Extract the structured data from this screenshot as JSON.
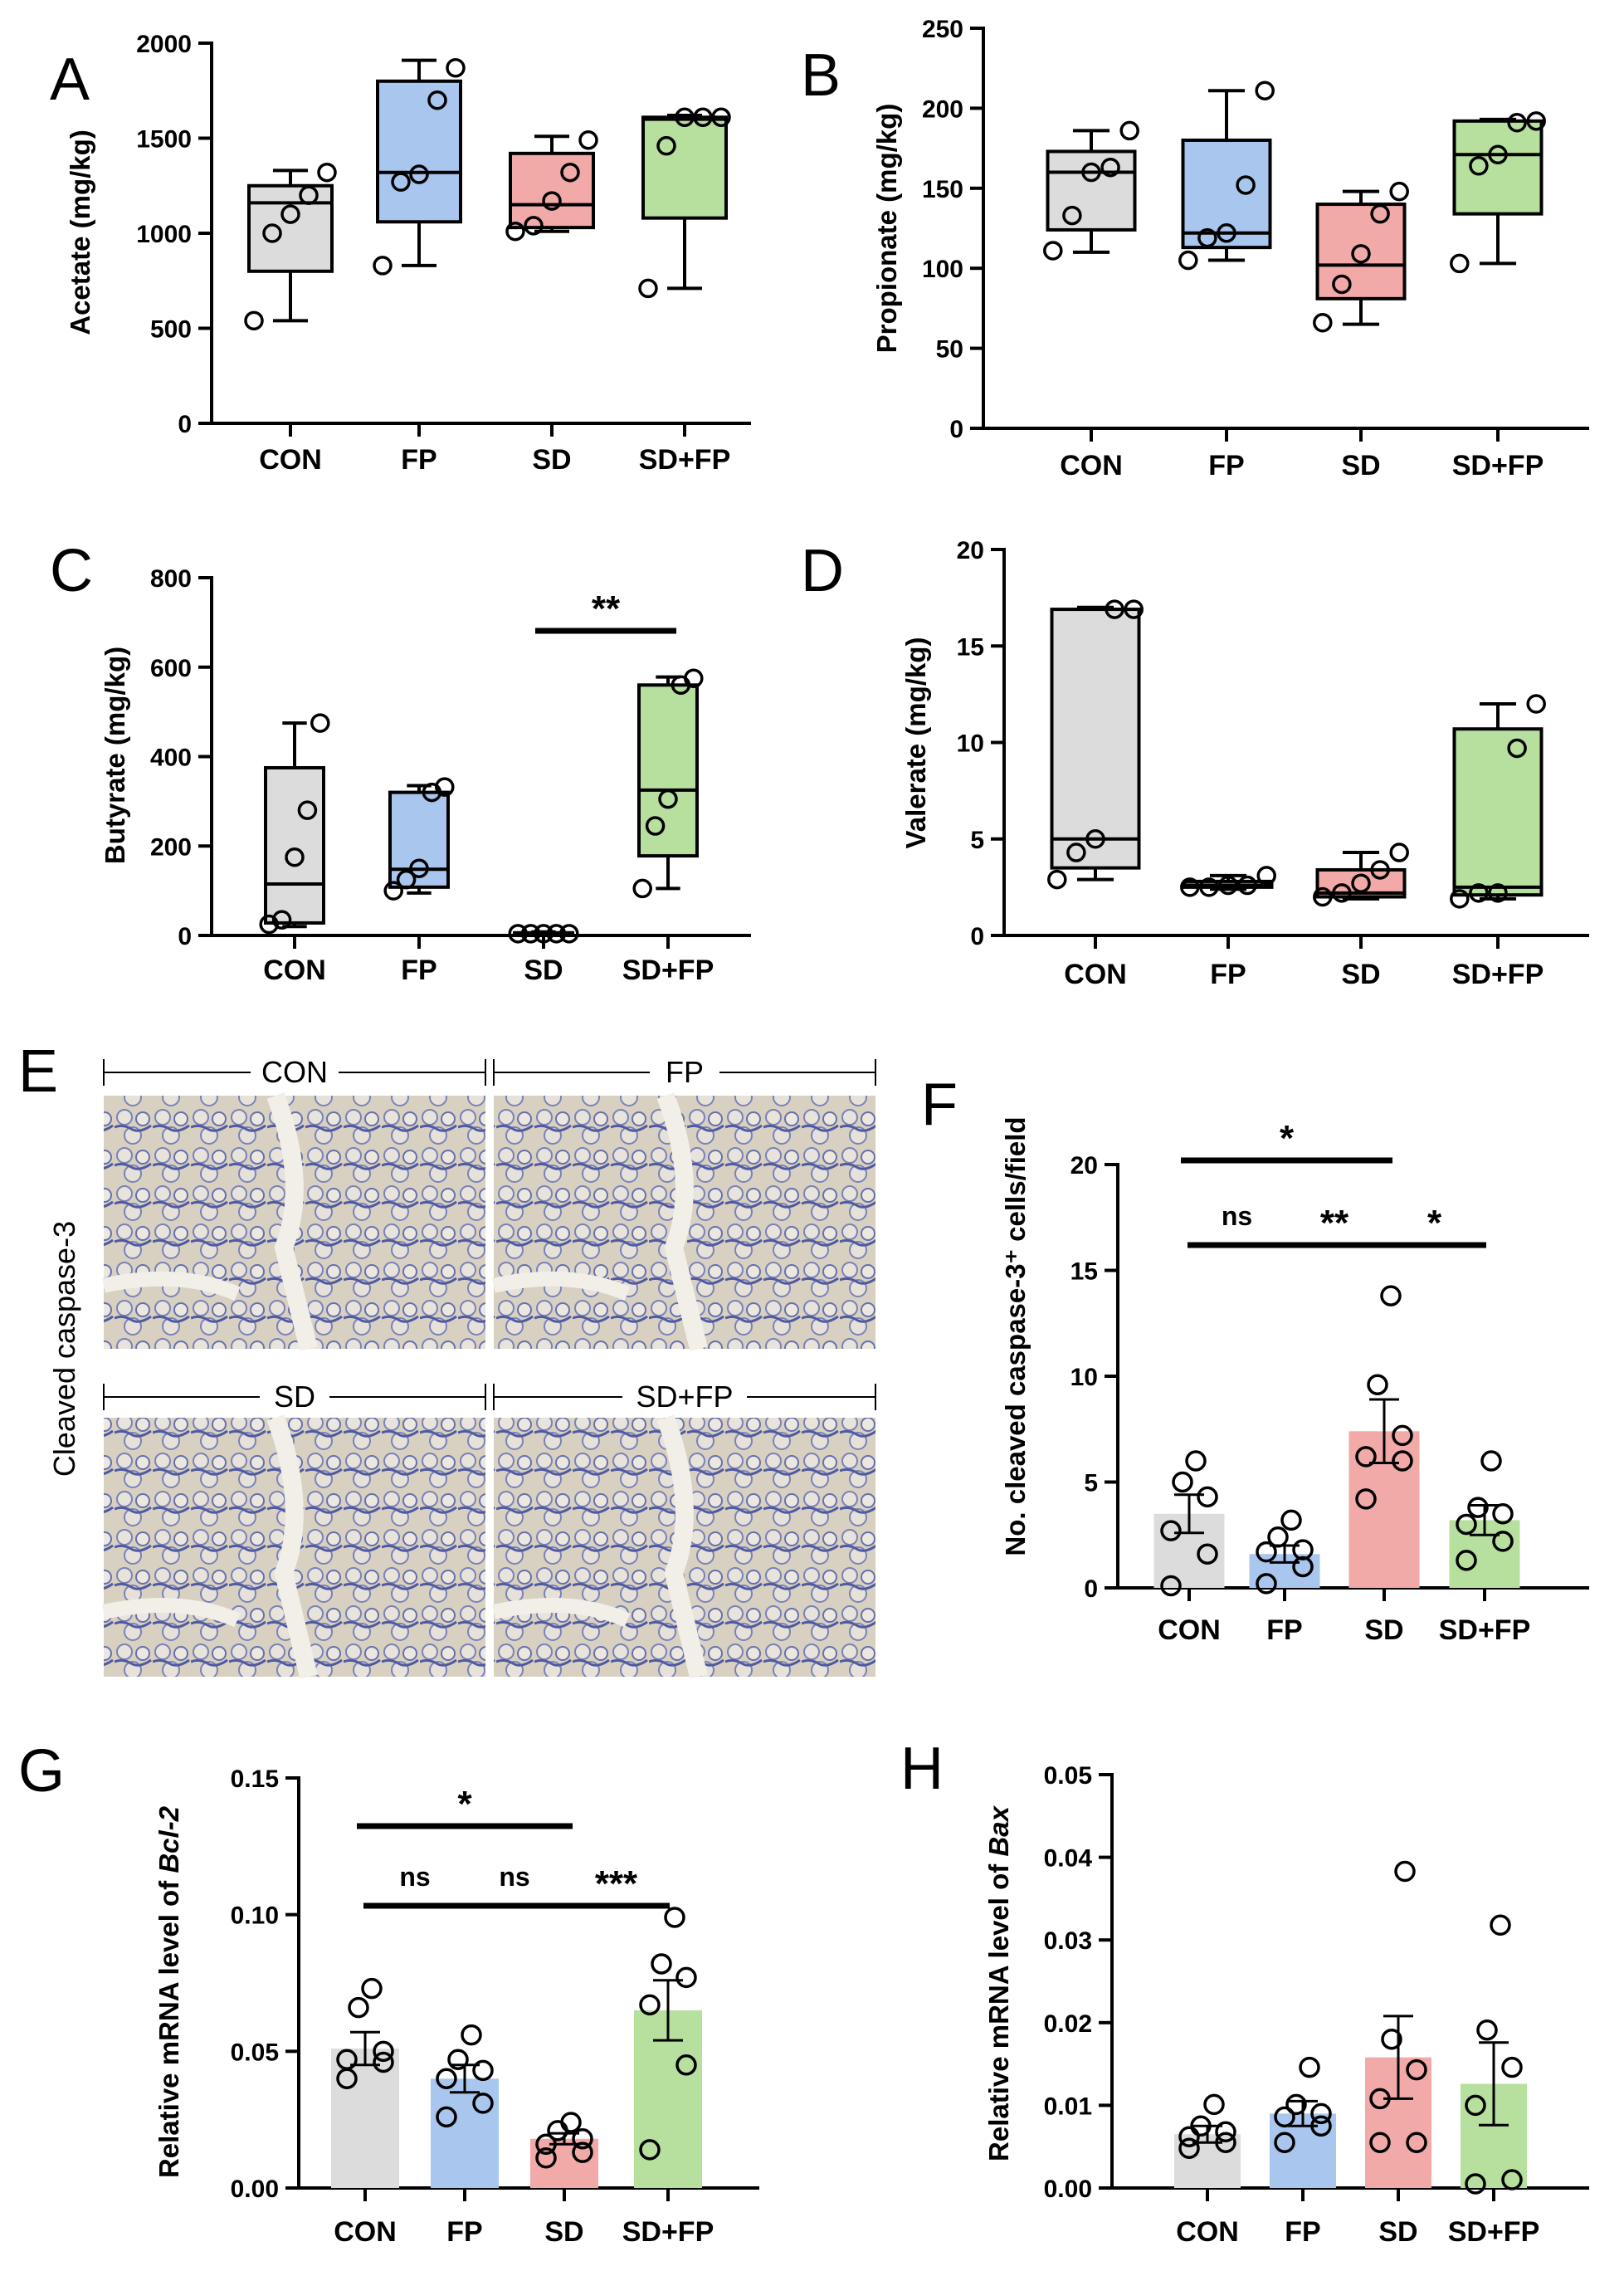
{
  "colors": {
    "CON": "#dcdcdc",
    "FP": "#a9c6ee",
    "SD": "#f2aaa8",
    "SD+FP": "#b7e09e",
    "tissue_bg": "#d9d2c4",
    "tissue_stain": "#5a64a8"
  },
  "chart_data": [
    {
      "panel": "A",
      "type": "box",
      "categories": [
        "CON",
        "FP",
        "SD",
        "SD+FP"
      ],
      "ylabel": "Acetate (mg/kg)",
      "ylim": [
        0,
        2000
      ],
      "yticks": [
        0,
        500,
        1000,
        1500,
        2000
      ],
      "boxes": [
        {
          "min": 540,
          "q1": 800,
          "median": 1160,
          "q3": 1250,
          "max": 1330,
          "points": [
            540,
            1000,
            1100,
            1200,
            1320
          ]
        },
        {
          "min": 830,
          "q1": 1060,
          "median": 1320,
          "q3": 1800,
          "max": 1910,
          "points": [
            830,
            1270,
            1310,
            1700,
            1870
          ]
        },
        {
          "min": 1010,
          "q1": 1030,
          "median": 1150,
          "q3": 1420,
          "max": 1510,
          "points": [
            1010,
            1040,
            1170,
            1320,
            1490
          ]
        },
        {
          "min": 710,
          "q1": 1080,
          "median": 1600,
          "q3": 1610,
          "max": 1620,
          "points": [
            710,
            1460,
            1610,
            1610,
            1610
          ]
        }
      ]
    },
    {
      "panel": "B",
      "type": "box",
      "categories": [
        "CON",
        "FP",
        "SD",
        "SD+FP"
      ],
      "ylabel": "Propionate (mg/kg)",
      "ylim": [
        0,
        250
      ],
      "yticks": [
        0,
        50,
        100,
        150,
        200,
        250
      ],
      "boxes": [
        {
          "min": 110,
          "q1": 124,
          "median": 160,
          "q3": 173,
          "max": 186,
          "points": [
            111,
            133,
            160,
            163,
            186
          ]
        },
        {
          "min": 105,
          "q1": 113,
          "median": 122,
          "q3": 180,
          "max": 211,
          "points": [
            105,
            119,
            122,
            152,
            211
          ]
        },
        {
          "min": 65,
          "q1": 81,
          "median": 102,
          "q3": 140,
          "max": 148,
          "points": [
            66,
            90,
            109,
            134,
            148
          ]
        },
        {
          "min": 103,
          "q1": 134,
          "median": 171,
          "q3": 192,
          "max": 193,
          "points": [
            103,
            164,
            171,
            191,
            192
          ]
        }
      ]
    },
    {
      "panel": "C",
      "type": "box",
      "categories": [
        "CON",
        "FP",
        "SD",
        "SD+FP"
      ],
      "ylabel": "Butyrate (mg/kg)",
      "ylim": [
        0,
        800
      ],
      "yticks": [
        0,
        200,
        400,
        600,
        800
      ],
      "boxes": [
        {
          "min": 20,
          "q1": 28,
          "median": 115,
          "q3": 375,
          "max": 475,
          "points": [
            25,
            35,
            175,
            280,
            475
          ]
        },
        {
          "min": 95,
          "q1": 108,
          "median": 148,
          "q3": 320,
          "max": 335,
          "points": [
            100,
            125,
            150,
            320,
            332
          ]
        },
        {
          "min": 0,
          "q1": 2,
          "median": 4,
          "q3": 6,
          "max": 8,
          "points": [
            4,
            4,
            4,
            4,
            4
          ]
        },
        {
          "min": 105,
          "q1": 178,
          "median": 325,
          "q3": 560,
          "max": 578,
          "points": [
            105,
            245,
            305,
            560,
            575
          ]
        }
      ],
      "significance": [
        {
          "from": "SD",
          "to": "SD+FP",
          "label": "**"
        }
      ]
    },
    {
      "panel": "D",
      "type": "box",
      "categories": [
        "CON",
        "FP",
        "SD",
        "SD+FP"
      ],
      "ylabel": "Valerate (mg/kg)",
      "ylim": [
        0,
        20
      ],
      "yticks": [
        0,
        5,
        10,
        15,
        20
      ],
      "boxes": [
        {
          "min": 2.9,
          "q1": 3.5,
          "median": 5.0,
          "q3": 16.9,
          "max": 17.0,
          "points": [
            2.9,
            4.3,
            5.0,
            16.9,
            16.9
          ]
        },
        {
          "min": 2.4,
          "q1": 2.5,
          "median": 2.6,
          "q3": 2.8,
          "max": 3.1,
          "points": [
            2.5,
            2.5,
            2.6,
            2.6,
            3.1
          ]
        },
        {
          "min": 1.9,
          "q1": 2.0,
          "median": 2.2,
          "q3": 3.4,
          "max": 4.3,
          "points": [
            2.0,
            2.2,
            2.7,
            3.4,
            4.3
          ]
        },
        {
          "min": 1.9,
          "q1": 2.1,
          "median": 2.5,
          "q3": 10.7,
          "max": 12.0,
          "points": [
            1.9,
            2.2,
            2.2,
            9.7,
            12.0
          ]
        }
      ]
    },
    {
      "panel": "F",
      "type": "bar",
      "categories": [
        "CON",
        "FP",
        "SD",
        "SD+FP"
      ],
      "ylabel": "No. cleaved caspase-3⁺ cells/field",
      "ylim": [
        0,
        20
      ],
      "yticks": [
        0,
        5,
        10,
        15,
        20
      ],
      "means": [
        3.5,
        1.6,
        7.4,
        3.2
      ],
      "sem": [
        0.9,
        0.4,
        1.5,
        0.7
      ],
      "points": [
        [
          0.1,
          1.6,
          2.7,
          4.3,
          5.0,
          6.0
        ],
        [
          0.2,
          1.0,
          1.7,
          1.8,
          2.4,
          3.2
        ],
        [
          4.2,
          6.0,
          6.2,
          7.2,
          9.6,
          13.8
        ],
        [
          1.3,
          2.2,
          3.0,
          3.5,
          3.8,
          6.0
        ]
      ],
      "significance": [
        {
          "from": "CON",
          "to": "SD",
          "label": "*"
        },
        {
          "from": "CON",
          "to": "FP",
          "label": "ns"
        },
        {
          "from": "FP",
          "to": "SD",
          "label": "**"
        },
        {
          "from": "SD",
          "to": "SD+FP",
          "label": "*"
        }
      ]
    },
    {
      "panel": "G",
      "type": "bar",
      "categories": [
        "CON",
        "FP",
        "SD",
        "SD+FP"
      ],
      "ylabel": "Relative mRNA level of",
      "ylabel_gene": "Bcl-2",
      "ylim": [
        0,
        0.15
      ],
      "yticks": [
        "0.00",
        "0.05",
        "0.10",
        "0.15"
      ],
      "means": [
        0.051,
        0.04,
        0.018,
        0.065
      ],
      "sem": [
        0.006,
        0.005,
        0.002,
        0.011
      ],
      "points": [
        [
          0.04,
          0.046,
          0.047,
          0.05,
          0.066,
          0.073
        ],
        [
          0.026,
          0.031,
          0.04,
          0.043,
          0.047,
          0.056
        ],
        [
          0.011,
          0.013,
          0.016,
          0.018,
          0.021,
          0.024
        ],
        [
          0.014,
          0.045,
          0.067,
          0.077,
          0.082,
          0.099
        ]
      ],
      "significance": [
        {
          "from": "CON",
          "to": "SD",
          "label": "*"
        },
        {
          "from": "CON",
          "to": "FP",
          "label": "ns"
        },
        {
          "from": "FP",
          "to": "SD",
          "label": "ns"
        },
        {
          "from": "SD",
          "to": "SD+FP",
          "label": "***"
        }
      ]
    },
    {
      "panel": "H",
      "type": "bar",
      "categories": [
        "CON",
        "FP",
        "SD",
        "SD+FP"
      ],
      "ylabel": "Relative mRNA level of",
      "ylabel_gene": "Bax",
      "ylim": [
        0,
        0.05
      ],
      "yticks": [
        "0.00",
        "0.01",
        "0.02",
        "0.03",
        "0.04",
        "0.05"
      ],
      "means": [
        0.0065,
        0.009,
        0.0158,
        0.0126
      ],
      "sem": [
        0.001,
        0.0015,
        0.005,
        0.005
      ],
      "points": [
        [
          0.0048,
          0.0055,
          0.0062,
          0.0068,
          0.0075,
          0.0101
        ],
        [
          0.0055,
          0.0075,
          0.0086,
          0.009,
          0.0101,
          0.0146
        ],
        [
          0.0055,
          0.0055,
          0.0108,
          0.0143,
          0.018,
          0.0383
        ],
        [
          0.0005,
          0.001,
          0.01,
          0.0146,
          0.0191,
          0.0318
        ]
      ]
    }
  ],
  "image_panel": {
    "letter": "E",
    "side_label": "Cleaved caspase-3",
    "labels": [
      "CON",
      "FP",
      "SD",
      "SD+FP"
    ]
  }
}
